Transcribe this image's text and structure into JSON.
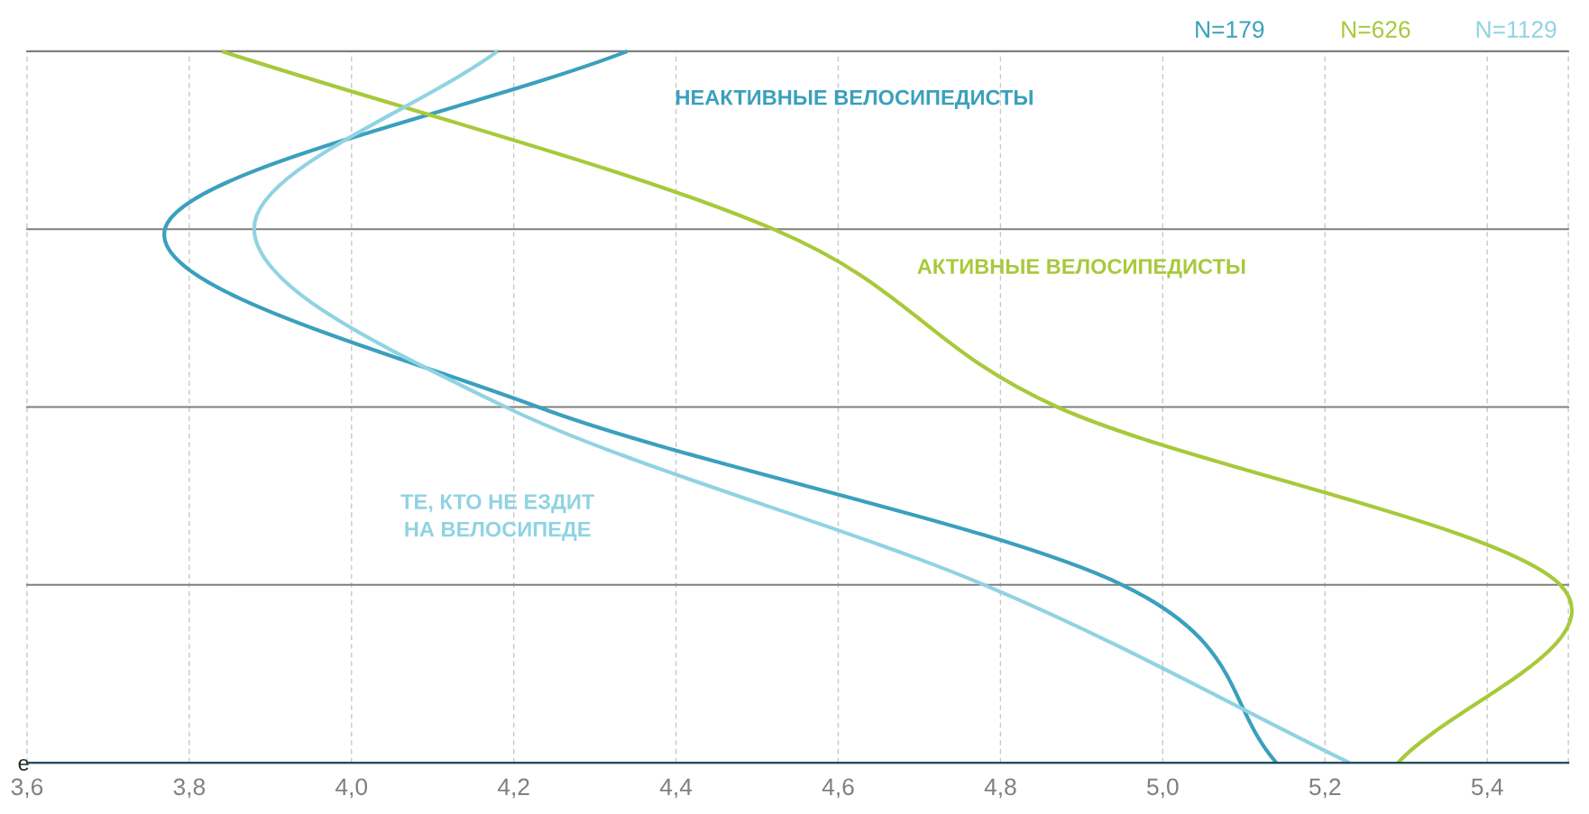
{
  "chart_data": {
    "type": "line",
    "orientation": "horizontal",
    "categories": [
      null,
      null,
      null,
      null,
      "е"
    ],
    "series": [
      {
        "name": "НЕАКТИВНЫЕ ВЕЛОСИПЕДИСТЫ",
        "color": "#3aa0bd",
        "values": [
          4.34,
          3.77,
          4.23,
          4.95,
          5.14
        ]
      },
      {
        "name": "АКТИВНЫЕ ВЕЛОСИПЕДИСТЫ",
        "color": "#a8c93a",
        "values": [
          3.84,
          4.52,
          4.87,
          5.49,
          5.29
        ]
      },
      {
        "name": "ТЕ, КТО НЕ ЕЗДИТ\nНА ВЕЛОСИПЕДЕ",
        "color": "#90d3e3",
        "values": [
          4.18,
          3.88,
          4.19,
          4.78,
          5.23
        ]
      }
    ],
    "annotations": [
      "N=179",
      "N=626",
      "N=1129"
    ],
    "xlim": [
      3.6,
      5.5
    ],
    "xticks": [
      {
        "value": 3.6,
        "label": "3,6"
      },
      {
        "value": 3.8,
        "label": "3,8"
      },
      {
        "value": 4.0,
        "label": "4,0"
      },
      {
        "value": 4.2,
        "label": "4,2"
      },
      {
        "value": 4.4,
        "label": "4,4"
      },
      {
        "value": 4.6,
        "label": "4,6"
      },
      {
        "value": 4.8,
        "label": "4,8"
      },
      {
        "value": 5.0,
        "label": "5,0"
      },
      {
        "value": 5.2,
        "label": "5,2"
      },
      {
        "value": 5.4,
        "label": "5,4"
      }
    ],
    "grid": true,
    "legend": false
  }
}
